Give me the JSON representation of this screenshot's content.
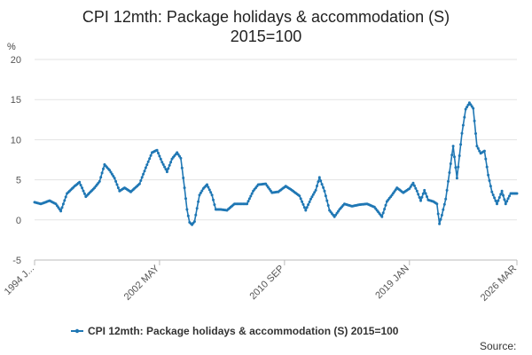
{
  "chart_data": {
    "type": "line",
    "title_line1": "CPI 12mth: Package holidays & accommodation (S)",
    "title_line2": "2015=100",
    "ylabel": "%",
    "ylim": [
      -5,
      20
    ],
    "y_ticks": [
      "-5",
      "0",
      "5",
      "10",
      "15",
      "20"
    ],
    "x_range": [
      "1994-01",
      "2026-03"
    ],
    "x_tick_labels": [
      {
        "date": "1994-01",
        "label": "1994 J..."
      },
      {
        "date": "2002-05",
        "label": "2002 MAY"
      },
      {
        "date": "2010-09",
        "label": "2010 SEP"
      },
      {
        "date": "2019-01",
        "label": "2019 JAN"
      },
      {
        "date": "2026-03",
        "label": "2026 MAR"
      }
    ],
    "grid": "horizontal",
    "legend_position": "bottom",
    "series": [
      {
        "name": "CPI 12mth: Package holidays & accommodation (S) 2015=100",
        "color": "#1f77b4",
        "points": [
          [
            "1994-01",
            2.2
          ],
          [
            "1994-06",
            2.0
          ],
          [
            "1995-01",
            2.4
          ],
          [
            "1995-06",
            2.0
          ],
          [
            "1995-10",
            1.1
          ],
          [
            "1996-03",
            3.3
          ],
          [
            "1996-09",
            4.2
          ],
          [
            "1997-01",
            4.7
          ],
          [
            "1997-06",
            2.9
          ],
          [
            "1998-01",
            4.0
          ],
          [
            "1998-05",
            4.8
          ],
          [
            "1998-09",
            6.9
          ],
          [
            "1999-01",
            6.2
          ],
          [
            "1999-05",
            5.2
          ],
          [
            "1999-09",
            3.6
          ],
          [
            "2000-01",
            4.0
          ],
          [
            "2000-06",
            3.5
          ],
          [
            "2001-01",
            4.5
          ],
          [
            "2001-06",
            6.5
          ],
          [
            "2001-11",
            8.4
          ],
          [
            "2002-03",
            8.7
          ],
          [
            "2002-07",
            7.2
          ],
          [
            "2002-11",
            6.0
          ],
          [
            "2003-03",
            7.6
          ],
          [
            "2003-07",
            8.4
          ],
          [
            "2003-10",
            7.7
          ],
          [
            "2004-01",
            4.0
          ],
          [
            "2004-03",
            1.3
          ],
          [
            "2004-05",
            -0.3
          ],
          [
            "2004-07",
            -0.6
          ],
          [
            "2004-09",
            -0.2
          ],
          [
            "2005-01",
            3.1
          ],
          [
            "2005-04",
            3.9
          ],
          [
            "2005-07",
            4.4
          ],
          [
            "2005-11",
            3.1
          ],
          [
            "2006-02",
            1.3
          ],
          [
            "2006-06",
            1.3
          ],
          [
            "2006-11",
            1.2
          ],
          [
            "2007-05",
            2.0
          ],
          [
            "2007-10",
            2.0
          ],
          [
            "2008-03",
            2.0
          ],
          [
            "2008-08",
            3.6
          ],
          [
            "2008-12",
            4.4
          ],
          [
            "2009-06",
            4.5
          ],
          [
            "2009-11",
            3.4
          ],
          [
            "2010-04",
            3.5
          ],
          [
            "2010-10",
            4.2
          ],
          [
            "2011-03",
            3.7
          ],
          [
            "2011-09",
            3.0
          ],
          [
            "2012-02",
            1.2
          ],
          [
            "2012-06",
            2.6
          ],
          [
            "2012-10",
            3.7
          ],
          [
            "2013-01",
            5.3
          ],
          [
            "2013-05",
            3.6
          ],
          [
            "2013-09",
            1.2
          ],
          [
            "2014-01",
            0.4
          ],
          [
            "2014-05",
            1.3
          ],
          [
            "2014-09",
            2.0
          ],
          [
            "2015-03",
            1.7
          ],
          [
            "2015-09",
            1.9
          ],
          [
            "2016-03",
            2.0
          ],
          [
            "2016-09",
            1.6
          ],
          [
            "2017-03",
            0.4
          ],
          [
            "2017-07",
            2.3
          ],
          [
            "2017-11",
            3.1
          ],
          [
            "2018-03",
            4.0
          ],
          [
            "2018-08",
            3.4
          ],
          [
            "2019-01",
            3.9
          ],
          [
            "2019-04",
            4.6
          ],
          [
            "2019-07",
            3.6
          ],
          [
            "2019-10",
            2.4
          ],
          [
            "2020-01",
            3.7
          ],
          [
            "2020-04",
            2.5
          ],
          [
            "2020-08",
            2.3
          ],
          [
            "2020-11",
            2.0
          ],
          [
            "2021-01",
            -0.5
          ],
          [
            "2021-03",
            0.6
          ],
          [
            "2021-06",
            2.6
          ],
          [
            "2021-09",
            5.9
          ],
          [
            "2021-12",
            9.2
          ],
          [
            "2022-03",
            5.2
          ],
          [
            "2022-07",
            10.8
          ],
          [
            "2022-10",
            13.8
          ],
          [
            "2023-01",
            14.6
          ],
          [
            "2023-04",
            13.9
          ],
          [
            "2023-07",
            9.2
          ],
          [
            "2023-10",
            8.3
          ],
          [
            "2024-01",
            8.6
          ],
          [
            "2024-04",
            5.6
          ],
          [
            "2024-07",
            3.5
          ],
          [
            "2024-11",
            2.0
          ],
          [
            "2025-03",
            3.6
          ],
          [
            "2025-06",
            2.0
          ],
          [
            "2025-10",
            3.3
          ],
          [
            "2026-03",
            3.3
          ]
        ]
      }
    ],
    "source_label": "Source:"
  }
}
